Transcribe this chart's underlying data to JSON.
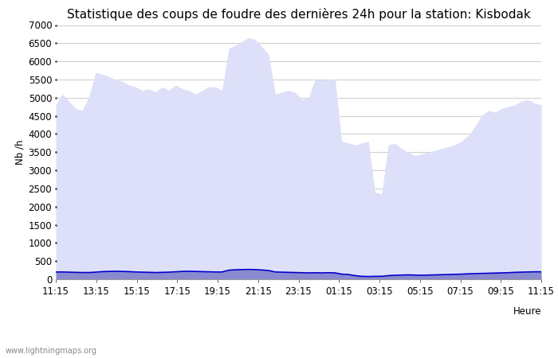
{
  "title": "Statistique des coups de foudre des dernières 24h pour la station: Kisbodak",
  "xlabel": "Heure",
  "ylabel": "Nb /h",
  "ylim": [
    0,
    7000
  ],
  "yticks": [
    0,
    500,
    1000,
    1500,
    2000,
    2500,
    3000,
    3500,
    4000,
    4500,
    5000,
    5500,
    6000,
    6500,
    7000
  ],
  "xtick_labels": [
    "11:15",
    "13:15",
    "15:15",
    "17:15",
    "19:15",
    "21:15",
    "23:15",
    "01:15",
    "03:15",
    "05:15",
    "07:15",
    "09:15",
    "11:15"
  ],
  "watermark": "www.lightningmaps.org",
  "total_foudre_color": "#dde0f8",
  "kisbodak_color": "#8a8ad0",
  "moyenne_color": "#0000cc",
  "total_foudre": [
    4800,
    5100,
    4900,
    4700,
    4650,
    5050,
    5700,
    5650,
    5580,
    5500,
    5450,
    5350,
    5300,
    5200,
    5250,
    5150,
    5300,
    5200,
    5350,
    5250,
    5200,
    5100,
    5200,
    5300,
    5300,
    5200,
    6350,
    6450,
    6550,
    6650,
    6600,
    6400,
    6200,
    5100,
    5150,
    5200,
    5150,
    4950,
    5000,
    5500,
    5480,
    5520,
    5510,
    3800,
    3750,
    3700,
    3750,
    3800,
    2400,
    2350,
    3700,
    3750,
    3600,
    3500,
    3400,
    3450,
    3500,
    3550,
    3600,
    3650,
    3700,
    3800,
    3950,
    4200,
    4500,
    4650,
    4600,
    4700,
    4750,
    4800,
    4900,
    4950,
    4850,
    4800
  ],
  "kisbodak": [
    200,
    200,
    195,
    190,
    185,
    185,
    195,
    210,
    215,
    220,
    215,
    210,
    200,
    195,
    190,
    185,
    190,
    195,
    205,
    215,
    220,
    215,
    210,
    205,
    200,
    200,
    250,
    260,
    265,
    270,
    265,
    255,
    240,
    200,
    195,
    190,
    185,
    180,
    175,
    180,
    175,
    180,
    175,
    140,
    130,
    100,
    80,
    75,
    80,
    80,
    100,
    110,
    115,
    120,
    115,
    110,
    115,
    120,
    125,
    130,
    135,
    140,
    150,
    155,
    160,
    165,
    170,
    175,
    180,
    190,
    195,
    200,
    205,
    205
  ],
  "moyenne": [
    200,
    200,
    195,
    190,
    185,
    185,
    195,
    210,
    215,
    220,
    215,
    210,
    200,
    195,
    190,
    185,
    190,
    195,
    205,
    215,
    220,
    215,
    210,
    205,
    200,
    200,
    250,
    260,
    265,
    270,
    265,
    255,
    240,
    200,
    195,
    190,
    185,
    180,
    175,
    180,
    175,
    180,
    175,
    140,
    130,
    100,
    80,
    75,
    80,
    80,
    100,
    110,
    115,
    120,
    115,
    110,
    115,
    120,
    125,
    130,
    135,
    140,
    150,
    155,
    160,
    165,
    170,
    175,
    180,
    190,
    195,
    200,
    205,
    205
  ],
  "background_color": "#ffffff",
  "grid_color": "#cccccc",
  "title_fontsize": 11,
  "tick_fontsize": 8.5,
  "label_fontsize": 8.5
}
